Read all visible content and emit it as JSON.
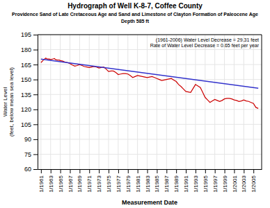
{
  "chart_data": {
    "type": "line",
    "title": "Hydrograph of Well K-8-7, Coffee County",
    "subtitle": [
      "Providence Sand of Late Cretaceous Age and Sand and Limestone of Clayton Formation of Paleocene Age",
      "Depth 585 ft"
    ],
    "x_label": "Measurement Date",
    "y_label": "Water Level\n(feet, below mean sea level)",
    "annotations": [
      "(1961-2006) Water Level Decrease = 29.31 feet\nRate of Water Level Decrease = 0.65 feet per year"
    ],
    "xlim": [
      1960.3,
      2006.7
    ],
    "xticks": [
      {
        "value": 1961.0,
        "label": "1/1961"
      },
      {
        "value": 1963.0,
        "label": "1/1963"
      },
      {
        "value": 1965.0,
        "label": "1/1965"
      },
      {
        "value": 1967.0,
        "label": "1/1967"
      },
      {
        "value": 1969.0,
        "label": "1/1969"
      },
      {
        "value": 1971.0,
        "label": "1/1971"
      },
      {
        "value": 1973.0,
        "label": "1/1973"
      },
      {
        "value": 1975.0,
        "label": "1/1975"
      },
      {
        "value": 1977.0,
        "label": "1/1977"
      },
      {
        "value": 1979.0,
        "label": "1/1979"
      },
      {
        "value": 1981.0,
        "label": "1/1981"
      },
      {
        "value": 1983.0,
        "label": "1/1983"
      },
      {
        "value": 1985.0,
        "label": "1/1985"
      },
      {
        "value": 1987.0,
        "label": "1/1987"
      },
      {
        "value": 1989.0,
        "label": "1/1989"
      },
      {
        "value": 1991.0,
        "label": "1/1991"
      },
      {
        "value": 1993.0,
        "label": "1/1993"
      },
      {
        "value": 1995.0,
        "label": "1/1995"
      },
      {
        "value": 1997.0,
        "label": "1/1997"
      },
      {
        "value": 1999.0,
        "label": "1/1999"
      },
      {
        "value": 2001.0,
        "label": "1/2001"
      },
      {
        "value": 2003.0,
        "label": "1/2003"
      },
      {
        "value": 2005.0,
        "label": "1/2005"
      }
    ],
    "ylim": [
      60,
      195
    ],
    "yticks": [
      60,
      75,
      90,
      105,
      120,
      135,
      150,
      165,
      180,
      195
    ],
    "grid": true,
    "series": [
      {
        "color": "#cc0000",
        "x": [
          1961.0,
          1961.3,
          1961.6,
          1962.0,
          1962.3,
          1962.7,
          1963.0,
          1963.4,
          1963.8,
          1964.0,
          1964.4,
          1964.8,
          1965.0,
          1965.5,
          1966.0,
          1966.5,
          1967.0,
          1967.5,
          1968.0,
          1968.5,
          1969.0,
          1969.5,
          1970.0,
          1970.5,
          1971.0,
          1971.5,
          1972.0,
          1972.5,
          1973.0,
          1973.5,
          1974.0,
          1974.5,
          1975.0,
          1975.5,
          1976.0,
          1976.5,
          1977.0,
          1977.5,
          1978.0,
          1978.5,
          1979.0,
          1979.5,
          1980.0,
          1980.5,
          1981.0,
          1981.5,
          1982.0,
          1982.5,
          1983.0,
          1983.5,
          1984.0,
          1984.5,
          1985.0,
          1985.5,
          1986.0,
          1986.5,
          1987.0,
          1987.5,
          1988.0,
          1988.5,
          1989.0,
          1989.5,
          1990.0,
          1990.5,
          1991.0,
          1991.5,
          1992.0,
          1992.5,
          1993.0,
          1993.5,
          1994.0,
          1994.5,
          1995.0,
          1995.5,
          1996.0,
          1996.5,
          1997.0,
          1997.5,
          1998.0,
          1998.5,
          1999.0,
          1999.5,
          2000.0,
          2000.5,
          2001.0,
          2001.5,
          2002.0,
          2002.5,
          2003.0,
          2003.5,
          2004.0,
          2004.5,
          2005.0,
          2005.5,
          2006.0
        ],
        "values": [
          167.0,
          168.5,
          170.0,
          171.5,
          170.5,
          170.5,
          170.0,
          170.5,
          171.0,
          170.0,
          169.5,
          169.5,
          169.0,
          168.5,
          167.5,
          167.0,
          166.0,
          164.5,
          163.5,
          164.0,
          165.0,
          164.0,
          163.0,
          162.5,
          162.0,
          162.5,
          163.0,
          162.5,
          161.5,
          162.0,
          162.5,
          160.5,
          158.0,
          158.5,
          158.5,
          157.0,
          155.0,
          155.5,
          156.0,
          156.0,
          155.5,
          154.0,
          152.0,
          153.0,
          154.0,
          153.5,
          153.0,
          152.5,
          152.0,
          152.5,
          153.0,
          152.0,
          151.0,
          150.0,
          149.0,
          149.5,
          150.0,
          150.5,
          151.0,
          149.5,
          148.0,
          145.0,
          143.0,
          140.5,
          138.0,
          137.5,
          137.0,
          141.0,
          145.0,
          143.5,
          142.0,
          137.0,
          132.0,
          129.5,
          127.0,
          128.5,
          130.0,
          129.0,
          128.0,
          129.0,
          130.5,
          131.0,
          131.0,
          130.5,
          129.5,
          129.0,
          128.0,
          128.5,
          129.5,
          128.5,
          128.0,
          127.0,
          126.0,
          122.0,
          121.0
        ]
      },
      {
        "color": "#3333cc",
        "x": [
          1961.0,
          2006.0
        ],
        "values": [
          170.5,
          141.2
        ]
      }
    ]
  }
}
